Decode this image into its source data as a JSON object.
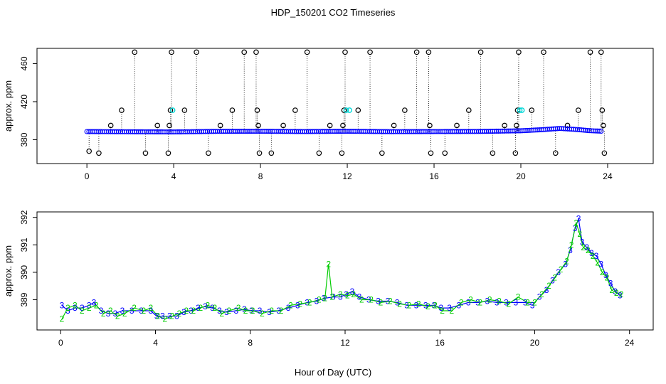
{
  "title": "HDP_150201  CO2 Timeseries",
  "xlabel": "Hour of Day (UTC)",
  "chart_data": [
    {
      "type": "scatter",
      "panel": "top",
      "ylabel": "approx. ppm",
      "xlim": [
        -2.3,
        26.1
      ],
      "ylim": [
        355,
        476
      ],
      "xticks": [
        0,
        4,
        8,
        12,
        16,
        20,
        24
      ],
      "yticks": [
        380,
        420,
        460
      ],
      "baseline": [
        [
          0.0,
          388.6
        ],
        [
          2.0,
          388.4
        ],
        [
          4.0,
          388.2
        ],
        [
          6.0,
          388.8
        ],
        [
          8.0,
          388.9
        ],
        [
          10.0,
          388.6
        ],
        [
          12.0,
          388.9
        ],
        [
          14.0,
          388.5
        ],
        [
          16.0,
          388.6
        ],
        [
          18.0,
          388.7
        ],
        [
          20.0,
          389.4
        ],
        [
          21.0,
          390.6
        ],
        [
          21.8,
          391.9
        ],
        [
          22.6,
          390.7
        ],
        [
          23.2,
          389.5
        ],
        [
          23.7,
          389.0
        ]
      ],
      "outliers": [
        {
          "x": 0.1,
          "y": 368
        },
        {
          "x": 0.55,
          "y": 366
        },
        {
          "x": 1.1,
          "y": 395
        },
        {
          "x": 1.6,
          "y": 411
        },
        {
          "x": 2.2,
          "y": 472
        },
        {
          "x": 2.7,
          "y": 366
        },
        {
          "x": 3.25,
          "y": 395
        },
        {
          "x": 3.75,
          "y": 366
        },
        {
          "x": 3.8,
          "y": 395
        },
        {
          "x": 3.85,
          "y": 411
        },
        {
          "x": 3.9,
          "y": 472
        },
        {
          "x": 4.5,
          "y": 411
        },
        {
          "x": 5.05,
          "y": 472
        },
        {
          "x": 5.6,
          "y": 366
        },
        {
          "x": 6.15,
          "y": 395
        },
        {
          "x": 6.7,
          "y": 411
        },
        {
          "x": 7.25,
          "y": 472
        },
        {
          "x": 7.8,
          "y": 472
        },
        {
          "x": 7.85,
          "y": 411
        },
        {
          "x": 7.9,
          "y": 395
        },
        {
          "x": 7.95,
          "y": 366
        },
        {
          "x": 8.5,
          "y": 366
        },
        {
          "x": 9.05,
          "y": 395
        },
        {
          "x": 9.6,
          "y": 411
        },
        {
          "x": 10.15,
          "y": 472
        },
        {
          "x": 10.7,
          "y": 366
        },
        {
          "x": 11.2,
          "y": 395
        },
        {
          "x": 11.75,
          "y": 366
        },
        {
          "x": 11.8,
          "y": 395
        },
        {
          "x": 11.85,
          "y": 411
        },
        {
          "x": 11.9,
          "y": 472
        },
        {
          "x": 12.5,
          "y": 411
        },
        {
          "x": 13.05,
          "y": 472
        },
        {
          "x": 13.6,
          "y": 366
        },
        {
          "x": 14.15,
          "y": 395
        },
        {
          "x": 14.65,
          "y": 411
        },
        {
          "x": 15.2,
          "y": 472
        },
        {
          "x": 15.75,
          "y": 472
        },
        {
          "x": 15.8,
          "y": 395
        },
        {
          "x": 15.85,
          "y": 366
        },
        {
          "x": 16.5,
          "y": 366
        },
        {
          "x": 17.05,
          "y": 395
        },
        {
          "x": 17.6,
          "y": 411
        },
        {
          "x": 18.15,
          "y": 472
        },
        {
          "x": 18.7,
          "y": 366
        },
        {
          "x": 19.25,
          "y": 395
        },
        {
          "x": 19.75,
          "y": 366
        },
        {
          "x": 19.8,
          "y": 395
        },
        {
          "x": 19.85,
          "y": 411
        },
        {
          "x": 19.9,
          "y": 472
        },
        {
          "x": 20.5,
          "y": 411
        },
        {
          "x": 21.05,
          "y": 472
        },
        {
          "x": 21.6,
          "y": 366
        },
        {
          "x": 22.15,
          "y": 395
        },
        {
          "x": 22.65,
          "y": 411
        },
        {
          "x": 23.2,
          "y": 472
        },
        {
          "x": 23.7,
          "y": 472
        },
        {
          "x": 23.75,
          "y": 411
        },
        {
          "x": 23.8,
          "y": 395
        },
        {
          "x": 23.85,
          "y": 366
        }
      ],
      "highlight_points": [
        {
          "x": 3.95,
          "y": 411
        },
        {
          "x": 11.95,
          "y": 411
        },
        {
          "x": 12.1,
          "y": 411
        },
        {
          "x": 19.95,
          "y": 411
        },
        {
          "x": 20.05,
          "y": 411
        }
      ]
    },
    {
      "type": "line",
      "panel": "bottom",
      "ylabel": "approx. ppm",
      "xlim": [
        -1.0,
        25.0
      ],
      "ylim": [
        387.9,
        392.2
      ],
      "xticks": [
        0,
        4,
        8,
        12,
        16,
        20,
        24
      ],
      "yticks": [
        389,
        390,
        391,
        392
      ],
      "series": [
        {
          "name": "3",
          "label": "3",
          "color": "#0000ff",
          "points": [
            [
              0.05,
              388.8
            ],
            [
              0.3,
              388.6
            ],
            [
              0.6,
              388.7
            ],
            [
              0.9,
              388.7
            ],
            [
              1.2,
              388.8
            ],
            [
              1.4,
              388.9
            ],
            [
              1.7,
              388.6
            ],
            [
              2.0,
              388.5
            ],
            [
              2.3,
              388.5
            ],
            [
              2.6,
              388.6
            ],
            [
              3.0,
              388.6
            ],
            [
              3.4,
              388.6
            ],
            [
              3.8,
              388.6
            ],
            [
              4.05,
              388.4
            ],
            [
              4.3,
              388.4
            ],
            [
              4.6,
              388.4
            ],
            [
              4.9,
              388.4
            ],
            [
              5.2,
              388.55
            ],
            [
              5.5,
              388.6
            ],
            [
              5.8,
              388.7
            ],
            [
              6.1,
              388.75
            ],
            [
              6.4,
              388.7
            ],
            [
              6.7,
              388.6
            ],
            [
              7.0,
              388.55
            ],
            [
              7.4,
              388.6
            ],
            [
              7.75,
              388.65
            ],
            [
              8.05,
              388.6
            ],
            [
              8.4,
              388.6
            ],
            [
              8.8,
              388.55
            ],
            [
              9.2,
              388.6
            ],
            [
              9.6,
              388.7
            ],
            [
              10.0,
              388.8
            ],
            [
              10.4,
              388.9
            ],
            [
              10.8,
              388.95
            ],
            [
              11.1,
              389.05
            ],
            [
              11.5,
              389.1
            ],
            [
              11.8,
              389.1
            ],
            [
              12.05,
              389.2
            ],
            [
              12.3,
              389.3
            ],
            [
              12.6,
              389.1
            ],
            [
              13.0,
              389.0
            ],
            [
              13.4,
              388.95
            ],
            [
              13.8,
              388.95
            ],
            [
              14.2,
              388.9
            ],
            [
              14.6,
              388.8
            ],
            [
              15.0,
              388.8
            ],
            [
              15.4,
              388.8
            ],
            [
              15.75,
              388.8
            ],
            [
              16.05,
              388.7
            ],
            [
              16.4,
              388.7
            ],
            [
              16.8,
              388.8
            ],
            [
              17.2,
              388.9
            ],
            [
              17.6,
              388.9
            ],
            [
              18.0,
              388.95
            ],
            [
              18.4,
              388.9
            ],
            [
              18.8,
              388.9
            ],
            [
              19.2,
              388.9
            ],
            [
              19.6,
              388.9
            ],
            [
              19.9,
              388.8
            ],
            [
              20.2,
              389.1
            ],
            [
              20.5,
              389.35
            ],
            [
              20.75,
              389.7
            ],
            [
              21.0,
              390.0
            ],
            [
              21.3,
              390.3
            ],
            [
              21.5,
              390.8
            ],
            [
              21.7,
              391.6
            ],
            [
              21.85,
              391.95
            ],
            [
              22.0,
              391.1
            ],
            [
              22.2,
              390.9
            ],
            [
              22.4,
              390.7
            ],
            [
              22.6,
              390.6
            ],
            [
              22.8,
              390.3
            ],
            [
              23.0,
              389.9
            ],
            [
              23.2,
              389.6
            ],
            [
              23.4,
              389.3
            ],
            [
              23.6,
              389.15
            ]
          ]
        },
        {
          "name": "2",
          "label": "2",
          "color": "#00cc00",
          "points": [
            [
              0.05,
              388.3
            ],
            [
              0.3,
              388.7
            ],
            [
              0.6,
              388.8
            ],
            [
              0.9,
              388.6
            ],
            [
              1.2,
              388.7
            ],
            [
              1.5,
              388.8
            ],
            [
              1.8,
              388.5
            ],
            [
              2.1,
              388.6
            ],
            [
              2.4,
              388.4
            ],
            [
              2.7,
              388.5
            ],
            [
              3.1,
              388.7
            ],
            [
              3.5,
              388.6
            ],
            [
              3.8,
              388.7
            ],
            [
              4.1,
              388.4
            ],
            [
              4.4,
              388.3
            ],
            [
              4.7,
              388.4
            ],
            [
              5.0,
              388.5
            ],
            [
              5.3,
              388.6
            ],
            [
              5.6,
              388.6
            ],
            [
              5.9,
              388.7
            ],
            [
              6.2,
              388.8
            ],
            [
              6.5,
              388.7
            ],
            [
              6.8,
              388.5
            ],
            [
              7.1,
              388.6
            ],
            [
              7.5,
              388.7
            ],
            [
              7.8,
              388.6
            ],
            [
              8.1,
              388.6
            ],
            [
              8.5,
              388.5
            ],
            [
              8.9,
              388.6
            ],
            [
              9.3,
              388.6
            ],
            [
              9.7,
              388.8
            ],
            [
              10.1,
              388.85
            ],
            [
              10.5,
              388.9
            ],
            [
              10.9,
              389.0
            ],
            [
              11.15,
              389.05
            ],
            [
              11.3,
              390.3
            ],
            [
              11.45,
              389.1
            ],
            [
              11.8,
              389.2
            ],
            [
              12.1,
              389.15
            ],
            [
              12.35,
              389.2
            ],
            [
              12.7,
              389.0
            ],
            [
              13.1,
              389.0
            ],
            [
              13.5,
              388.9
            ],
            [
              13.9,
              388.95
            ],
            [
              14.3,
              388.85
            ],
            [
              14.7,
              388.8
            ],
            [
              15.1,
              388.85
            ],
            [
              15.5,
              388.75
            ],
            [
              15.8,
              388.8
            ],
            [
              16.1,
              388.6
            ],
            [
              16.5,
              388.6
            ],
            [
              16.9,
              388.9
            ],
            [
              17.3,
              389.0
            ],
            [
              17.7,
              388.9
            ],
            [
              18.1,
              389.0
            ],
            [
              18.5,
              388.95
            ],
            [
              18.9,
              388.85
            ],
            [
              19.3,
              389.1
            ],
            [
              19.7,
              388.9
            ],
            [
              20.0,
              388.9
            ],
            [
              20.3,
              389.2
            ],
            [
              20.6,
              389.5
            ],
            [
              20.85,
              389.8
            ],
            [
              21.1,
              390.1
            ],
            [
              21.35,
              390.4
            ],
            [
              21.55,
              391.0
            ],
            [
              21.75,
              391.8
            ],
            [
              21.9,
              391.4
            ],
            [
              22.05,
              390.9
            ],
            [
              22.25,
              390.8
            ],
            [
              22.45,
              390.6
            ],
            [
              22.65,
              390.35
            ],
            [
              22.85,
              390.0
            ],
            [
              23.05,
              389.8
            ],
            [
              23.25,
              389.35
            ],
            [
              23.45,
              389.25
            ],
            [
              23.65,
              389.2
            ]
          ]
        }
      ]
    }
  ]
}
